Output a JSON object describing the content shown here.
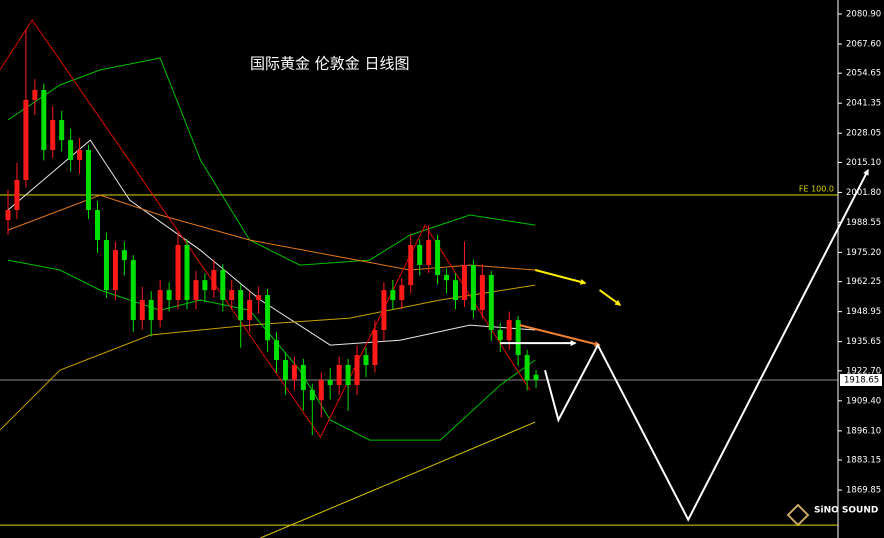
{
  "chart_data": {
    "type": "candlestick",
    "title": "国际黄金 伦敦金 日线图",
    "logo": "SiNO SOUND",
    "ylim": [
      1848.6,
      2087.1
    ],
    "yticks": [
      {
        "value": 2080.9,
        "label": "2080.90"
      },
      {
        "value": 2067.6,
        "label": "2067.60"
      },
      2054.65,
      2041.35,
      2028.05,
      {
        "value": 2015.1,
        "label": "2015.10"
      },
      {
        "value": 2001.8,
        "label": "2001.80"
      },
      1988.55,
      {
        "value": 1975.2,
        "label": "1975.20"
      },
      1962.25,
      1948.95,
      1935.65,
      {
        "value": 1922.7,
        "label": "1922.70"
      },
      {
        "value": 1909.4,
        "label": "1909.40"
      },
      {
        "value": 1896.1,
        "label": "1896.10"
      },
      1883.15,
      1869.85
    ],
    "last_price": 1918.65,
    "levels": [
      {
        "value": 2000.65,
        "label": "FE 100.0",
        "color": "#d8d800"
      },
      {
        "value": 1854.3,
        "color": "#d8d800"
      }
    ],
    "up_color": "#ff1a1a",
    "down_color": "#00e000",
    "candles": {
      "open": [
        1989.5,
        1994.0,
        2007.3,
        2042.8,
        2047.2,
        2020.6,
        2033.9,
        2025.0,
        2016.2,
        2020.6,
        1994.0,
        1980.7,
        1958.5,
        1976.2,
        1971.8,
        1945.2,
        1954.1,
        1945.2,
        1958.5,
        1954.1,
        1978.5,
        1954.1,
        1962.9,
        1958.5,
        1967.4,
        1954.1,
        1958.5,
        1945.2,
        1954.1,
        1956.3,
        1936.3,
        1927.5,
        1918.6,
        1925.3,
        1914.2,
        1909.7,
        1918.6,
        1916.4,
        1925.3,
        1916.4,
        1929.7,
        1925.3,
        1940.8,
        1958.5,
        1954.1,
        1960.7,
        1978.5,
        1969.6,
        1980.7,
        1965.2,
        1962.9,
        1954.1,
        1969.6,
        1949.6,
        1965.2,
        1940.8,
        1936.3,
        1945.2,
        1929.7,
        1921.0
      ],
      "high": [
        2003.0,
        2015.0,
        2073.8,
        2052.0,
        2050.0,
        2040.0,
        2038.0,
        2030.0,
        2026.0,
        2023.0,
        1998.0,
        1984.0,
        1980.0,
        1980.0,
        1974.0,
        1960.0,
        1958.0,
        1963.0,
        1962.0,
        1984.0,
        1981.0,
        1967.0,
        1966.0,
        1972.0,
        1970.0,
        1963.0,
        1961.0,
        1958.0,
        1960.0,
        1959.0,
        1940.0,
        1931.0,
        1929.0,
        1928.0,
        1917.0,
        1922.0,
        1924.0,
        1929.0,
        1928.0,
        1934.0,
        1933.0,
        1945.0,
        1962.0,
        1963.0,
        1964.0,
        1983.0,
        1981.0,
        1987.3,
        1983.0,
        1968.0,
        1966.0,
        1980.0,
        1972.0,
        1970.0,
        1967.0,
        1944.0,
        1949.0,
        1947.0,
        1932.0,
        1923.0
      ],
      "low": [
        1983.0,
        1990.0,
        2004.0,
        2036.0,
        2016.0,
        2017.0,
        2020.0,
        2011.0,
        2010.0,
        1990.0,
        1975.0,
        1955.0,
        1954.0,
        1965.0,
        1940.0,
        1941.0,
        1938.0,
        1942.0,
        1949.0,
        1950.0,
        1950.0,
        1950.0,
        1953.0,
        1955.0,
        1949.0,
        1950.0,
        1933.0,
        1940.0,
        1948.0,
        1931.0,
        1922.0,
        1912.0,
        1914.0,
        1905.0,
        1894.2,
        1902.0,
        1910.0,
        1912.0,
        1905.0,
        1912.0,
        1920.0,
        1922.0,
        1936.0,
        1950.0,
        1950.0,
        1957.0,
        1965.0,
        1966.0,
        1961.0,
        1957.0,
        1950.0,
        1951.0,
        1946.0,
        1946.0,
        1936.0,
        1931.0,
        1932.0,
        1925.0,
        1914.0,
        1915.0
      ],
      "close": [
        1994.0,
        2007.3,
        2042.8,
        2047.2,
        2020.6,
        2033.9,
        2025.0,
        2016.2,
        2020.6,
        1994.0,
        1980.7,
        1958.5,
        1976.2,
        1971.8,
        1945.2,
        1954.1,
        1945.2,
        1958.5,
        1954.1,
        1978.5,
        1954.1,
        1962.9,
        1958.5,
        1967.4,
        1954.1,
        1958.5,
        1945.2,
        1954.1,
        1956.3,
        1936.3,
        1927.5,
        1918.6,
        1925.3,
        1914.2,
        1909.7,
        1918.6,
        1916.4,
        1925.3,
        1916.4,
        1929.7,
        1925.3,
        1940.8,
        1958.5,
        1954.1,
        1960.7,
        1978.5,
        1969.6,
        1980.7,
        1965.2,
        1962.9,
        1954.1,
        1969.6,
        1949.6,
        1965.2,
        1940.8,
        1936.3,
        1945.2,
        1929.7,
        1918.6,
        1918.65
      ]
    },
    "series": [
      {
        "color": "#00c000",
        "x": [
          0,
          5.8,
          10.3,
          17.0,
          21.5,
          27.0,
          32.6,
          40.4,
          44.9,
          51.6,
          58.9
        ],
        "values": [
          2033.9,
          2049.4,
          2056.1,
          2061.4,
          2016.2,
          1980.7,
          1969.6,
          1971.8,
          1982.9,
          1991.8,
          1987.3
        ]
      },
      {
        "color": "#00c000",
        "x": [
          0,
          5.8,
          10.3,
          17.0,
          21.5,
          27.0,
          32.6,
          36.0,
          40.4,
          48.3,
          55.0,
          58.9
        ],
        "values": [
          1971.8,
          1967.4,
          1958.5,
          1949.6,
          1954.1,
          1949.6,
          1923.0,
          1900.9,
          1892.0,
          1892.0,
          1916.4,
          1927.5
        ]
      },
      {
        "color": "#e8e8e8",
        "x": [
          0,
          9.2,
          13.6,
          21.5,
          28.2,
          36.0,
          43.8,
          51.6,
          58.9
        ],
        "values": [
          1994.0,
          2025.0,
          1998.4,
          1976.2,
          1954.1,
          1934.1,
          1936.3,
          1943.0,
          1940.8
        ]
      },
      {
        "color": "#e0781e",
        "x": [
          0,
          10.3,
          17.0,
          27.0,
          36.0,
          44.9,
          51.6,
          58.9
        ],
        "values": [
          1985.1,
          2000.6,
          1991.8,
          1980.7,
          1974.0,
          1967.4,
          1969.6,
          1967.4
        ]
      },
      {
        "color": "#c8a000",
        "x": [
          -0.9,
          5.8,
          15.9,
          27.0,
          38.2,
          48.3,
          58.9
        ],
        "values": [
          1896.4,
          1923.0,
          1938.6,
          1943.0,
          1946.1,
          1954.1,
          1960.7
        ]
      },
      {
        "color": "#d8c800",
        "x": [
          28.2,
          58.9
        ],
        "values": [
          1848.6,
          1900.0
        ]
      },
      {
        "color": "#e00000",
        "x": [
          -0.9,
          2.7,
          34.9,
          46.6,
          58.3
        ],
        "values": [
          2056.1,
          2078.2,
          1893.3,
          1987.3,
          1914.2
        ]
      },
      {
        "color": "#ffee00",
        "arrow": true,
        "x": [
          58.9,
          64.5
        ],
        "values": [
          1967.4,
          1961.6
        ]
      },
      {
        "color": "#ffee00",
        "arrow": true,
        "x": [
          66.1,
          68.4
        ],
        "values": [
          1958.5,
          1951.9
        ]
      },
      {
        "color": "#f08030",
        "arrow": true,
        "x": [
          57.2,
          66.1
        ],
        "values": [
          1943.0,
          1934.1
        ]
      },
      {
        "color": "#ffffff",
        "arrow": true,
        "x": [
          55.0,
          63.4
        ],
        "values": [
          1935.0,
          1935.0
        ]
      },
      {
        "color": "#ffffff",
        "arrow": true,
        "x": [
          60.0,
          61.5,
          65.9,
          76.0,
          96.1
        ],
        "values": [
          1923.0,
          1900.9,
          1934.1,
          1856.7,
          2011.7
        ]
      }
    ]
  }
}
